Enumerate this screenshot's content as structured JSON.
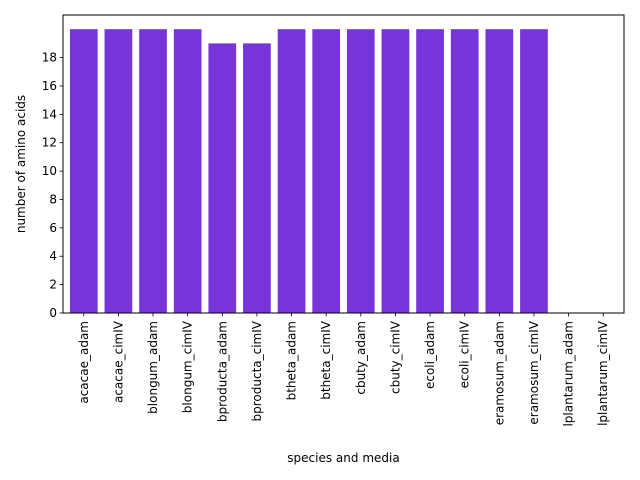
{
  "chart_data": {
    "type": "bar",
    "title": "",
    "xlabel": "species and media",
    "ylabel": "number of amino acids",
    "categories": [
      "acacae_adam",
      "acacae_cimIV",
      "blongum_adam",
      "blongum_cimIV",
      "bproducta_adam",
      "bproducta_cimIV",
      "btheta_adam",
      "btheta_cimIV",
      "cbuty_adam",
      "cbuty_cimIV",
      "ecoli_adam",
      "ecoli_cimIV",
      "eramosum_adam",
      "eramosum_cimIV",
      "lplantarum_adam",
      "lplantarum_cimIV"
    ],
    "values": [
      20,
      20,
      20,
      20,
      19,
      19,
      20,
      20,
      20,
      20,
      20,
      20,
      20,
      20,
      0,
      0
    ],
    "yticks": [
      0,
      2,
      4,
      6,
      8,
      10,
      12,
      14,
      16,
      18
    ],
    "ylim": [
      0,
      21
    ],
    "grid": false,
    "legend": "none",
    "bar_color": "#7734d9"
  }
}
